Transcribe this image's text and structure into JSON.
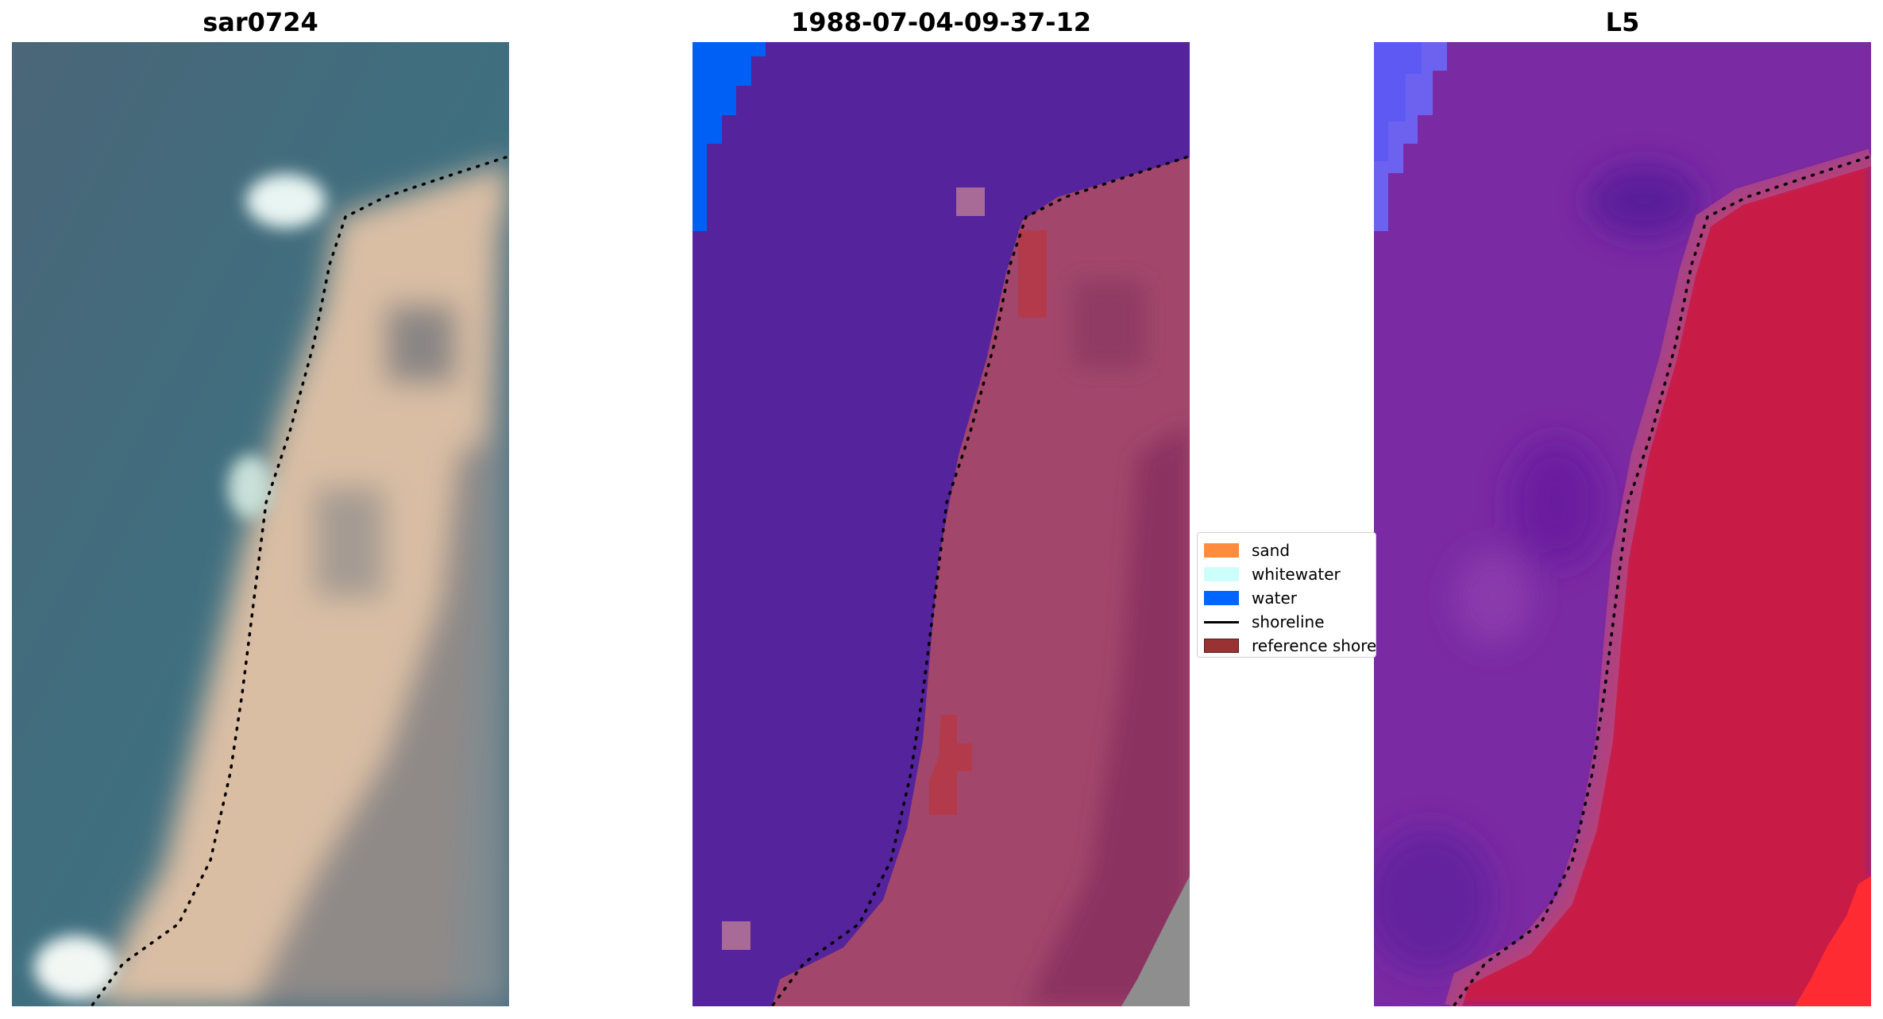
{
  "panels": [
    {
      "title": "sar0724"
    },
    {
      "title": "1988-07-04-09-37-12"
    },
    {
      "title": "L5"
    }
  ],
  "legend": {
    "items": [
      {
        "label": "sand",
        "color": "#ff8c3c",
        "kind": "patch"
      },
      {
        "label": "whitewater",
        "color": "#ccfffb",
        "kind": "patch"
      },
      {
        "label": "water",
        "color": "#0066ff",
        "kind": "patch"
      },
      {
        "label": "shoreline",
        "color": "#000000",
        "kind": "line"
      },
      {
        "label": "reference shoreline",
        "color": "#993333",
        "kind": "patch"
      }
    ]
  },
  "colors": {
    "water_rgb": "#4f6f7e",
    "sand_rgb": "#e8c7a6",
    "classified_water": "#55239b",
    "classified_land": "#a2476b",
    "l5_water": "#7a2aa3",
    "l5_land": "#c81c47"
  }
}
